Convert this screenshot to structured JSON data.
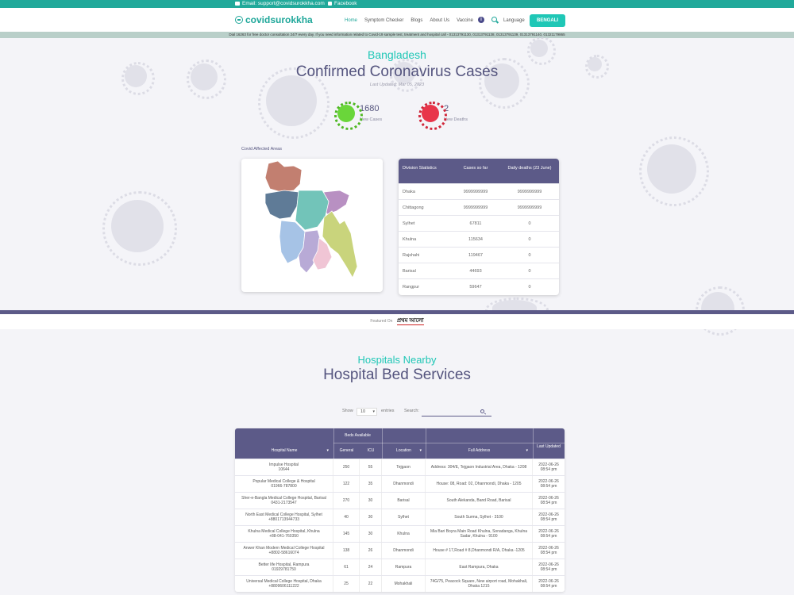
{
  "topbar": {
    "email": "Email: support@covidsurokkha.com",
    "facebook": "Facebook"
  },
  "navbar": {
    "logo": "covidsurokkha",
    "items": [
      "Home",
      "Symptom Checker",
      "Blogs",
      "About Us",
      "Vaccine"
    ],
    "language_label": "Language",
    "bengali_button": "BENGALI"
  },
  "notice": "Dial 16263 for free doctor consultation 24/7 every day. If you need information related to Covid-19 sample test, treatment and hospital call - 01313791130, 01313791138, 01313791139, 01313791140, 01321179865",
  "hero": {
    "country": "Bangladesh",
    "title": "Confirmed Coronavirus Cases",
    "last_updated": "Last Updated: Mar 05, 2023",
    "new_cases_value": "1680",
    "new_cases_label": "New Cases",
    "new_deaths_value": "2",
    "new_deaths_label": "New Deaths"
  },
  "affected_areas_label": "Covid Affected Areas",
  "division_table": {
    "headers": {
      "col1": "Division Statistics",
      "col2": "Cases so far",
      "col3": "Daily deaths (23 June)"
    },
    "rows": [
      {
        "name": "Dhaka",
        "cases": "9999999999",
        "deaths": "9999999999"
      },
      {
        "name": "Chittagong",
        "cases": "9999999999",
        "deaths": "9999999999"
      },
      {
        "name": "Sylhet",
        "cases": "67811",
        "deaths": "0"
      },
      {
        "name": "Khulna",
        "cases": "115634",
        "deaths": "0"
      },
      {
        "name": "Rajshahi",
        "cases": "119467",
        "deaths": "0"
      },
      {
        "name": "Barisal",
        "cases": "44693",
        "deaths": "0"
      },
      {
        "name": "Rangpur",
        "cases": "59647",
        "deaths": "0"
      }
    ]
  },
  "featured": {
    "label": "Featured On",
    "logo_text": "প্রথম আলো"
  },
  "hospitals": {
    "subtitle": "Hospitals Nearby",
    "title": "Hospital Bed Services",
    "show_label": "Show",
    "show_value": "10",
    "entries_label": "entries",
    "search_label": "Search:",
    "table_headers": {
      "beds_available": "Beds Available",
      "hospital_name": "Hospital Name",
      "general": "General",
      "icu": "ICU",
      "location": "Location",
      "full_address": "Full Address",
      "last_updated": "Last Updated"
    },
    "rows": [
      {
        "name": "Impulse Hospital",
        "phone": "10644",
        "general": "250",
        "icu": "55",
        "location": "Tejgaon",
        "address": "Address: 304/E, Tejgaon Industrial Area, Dhaka - 1208",
        "date": "2022-06-26",
        "time": "08:54 pm"
      },
      {
        "name": "Popular Medical College & Hospital",
        "phone": "01966-787800",
        "general": "122",
        "icu": "35",
        "location": "Dhanmondi",
        "address": "House: 08, Road: 02, Dhanmondi, Dhaka - 1205",
        "date": "2022-06-26",
        "time": "08:54 pm"
      },
      {
        "name": "Sher-e-Bangla Medical College Hospital, Barisal",
        "phone": "0431-2173547",
        "general": "270",
        "icu": "30",
        "location": "Barisal",
        "address": "South Alekanda, Band Road, Barisal",
        "date": "2022-06-26",
        "time": "08:54 pm"
      },
      {
        "name": "North East Medical College Hospital, Sylhet",
        "phone": "+8801713944733",
        "general": "40",
        "icu": "30",
        "location": "Sylhet",
        "address": "South Surma, Sylhet - 3100",
        "date": "2022-06-26",
        "time": "08:54 pm"
      },
      {
        "name": "Khulna Medical College Hospital, Khulna",
        "phone": "+88-041-760350",
        "general": "145",
        "icu": "30",
        "location": "Khulna",
        "address": "Mia Bari Boyra Main Road Khulna, Sonadanga, Khulna Sadar, Khulna - 9100",
        "date": "2022-06-26",
        "time": "08:54 pm"
      },
      {
        "name": "Anwer Khan Modern Medical College Hospital",
        "phone": "+8802-58616074",
        "general": "138",
        "icu": "26",
        "location": "Dhanmondi",
        "address": "House # 17,Road # 8,Dhanmondi R/A, Dhaka -1205",
        "date": "2022-06-26",
        "time": "08:54 pm"
      },
      {
        "name": "Better life Hospital, Rampura",
        "phone": "01929781750",
        "general": "61",
        "icu": "24",
        "location": "Rampura",
        "address": "East Rampura, Dhaka",
        "date": "2022-06-26",
        "time": "08:54 pm"
      },
      {
        "name": "Universal Medical College Hospital, Dhaka",
        "phone": "+8809606111222",
        "general": "25",
        "icu": "22",
        "location": "Mohakhali",
        "address": "74G/75, Peacock Square, New airport road, Mohakhali, Dhaka 1215",
        "date": "2022-06-26",
        "time": "08:54 pm"
      }
    ]
  },
  "map_colors": {
    "rangpur": "#c27f70",
    "mymensingh": "#5f7b97",
    "sylhet": "#b890c2",
    "dhaka": "#72c4b9",
    "rajshahi": "#a6c3e6",
    "chattogram": "#c9d47c",
    "khulna": "#b8aad6",
    "barisal": "#f0c5d5"
  }
}
